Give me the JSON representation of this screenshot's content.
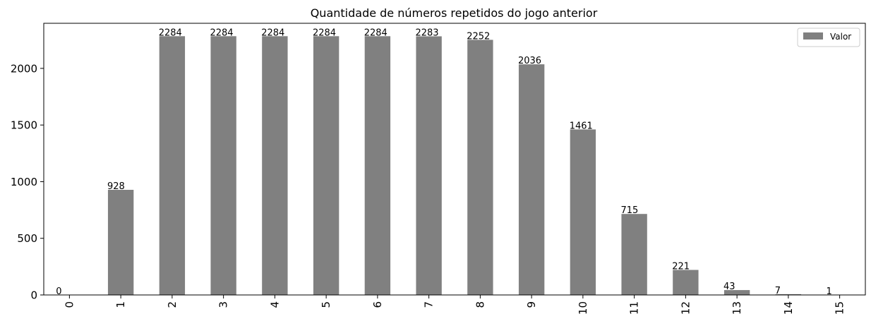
{
  "chart_data": {
    "type": "bar",
    "title": "Quantidade de números repetidos do jogo anterior",
    "xlabel": "",
    "ylabel": "",
    "categories": [
      "0",
      "1",
      "2",
      "3",
      "4",
      "5",
      "6",
      "7",
      "8",
      "9",
      "10",
      "11",
      "12",
      "13",
      "14",
      "15"
    ],
    "series": [
      {
        "name": "Valor",
        "values": [
          0,
          928,
          2284,
          2284,
          2284,
          2284,
          2284,
          2283,
          2252,
          2036,
          1461,
          715,
          221,
          43,
          7,
          1
        ],
        "color": "#808080"
      }
    ],
    "data_labels": [
      "0",
      "928",
      "2284",
      "2284",
      "2284",
      "2284",
      "2284",
      "2283",
      "2252",
      "2036",
      "1461",
      "715",
      "221",
      "43",
      "7",
      "1"
    ],
    "y_ticks": [
      "0",
      "500",
      "1000",
      "1500",
      "2000"
    ],
    "ylim": [
      0,
      2398
    ],
    "legend": {
      "position": "top-right",
      "entries": [
        "Valor"
      ]
    },
    "grid": false,
    "x_tick_rotation": "vertical"
  }
}
